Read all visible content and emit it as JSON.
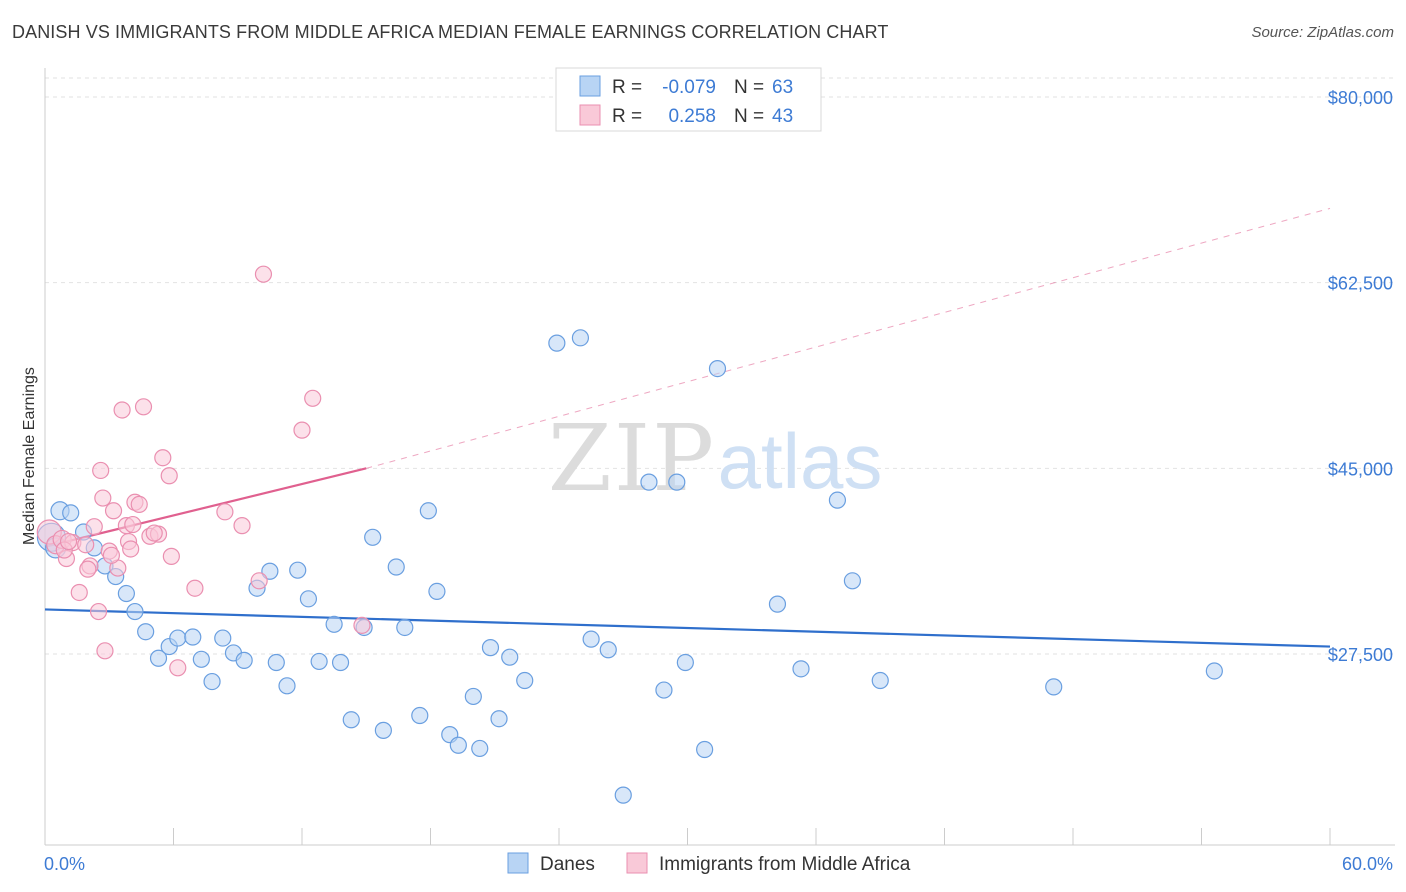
{
  "title": "DANISH VS IMMIGRANTS FROM MIDDLE AFRICA MEDIAN FEMALE EARNINGS CORRELATION CHART",
  "source": "Source: ZipAtlas.com",
  "watermark": {
    "zip": "ZIP",
    "atlas": "atlas"
  },
  "colors": {
    "blue_fill": "#b8d4f4",
    "blue_stroke": "#6a9fe0",
    "blue_line": "#2f6fcc",
    "pink_fill": "#f9c9d8",
    "pink_stroke": "#ea8fb0",
    "pink_line": "#e0608f",
    "axis_text": "#3d7bd4",
    "grid": "#e2e2e2"
  },
  "legend": {
    "rows": [
      {
        "r_label": "R =",
        "r_value": "-0.079",
        "n_label": "N =",
        "n_value": "63",
        "color": "#b8d4f4",
        "stroke": "#6a9fe0"
      },
      {
        "r_label": "R =",
        "r_value": "0.258",
        "n_label": "N =",
        "n_value": "43",
        "color": "#f9c9d8",
        "stroke": "#ea8fb0"
      }
    ]
  },
  "bottom_legend": [
    {
      "label": "Danes",
      "color": "#b8d4f4",
      "stroke": "#6a9fe0"
    },
    {
      "label": "Immigrants from Middle Africa",
      "color": "#f9c9d8",
      "stroke": "#ea8fb0"
    }
  ],
  "chart_data": {
    "type": "scatter",
    "title": "DANISH VS IMMIGRANTS FROM MIDDLE AFRICA MEDIAN FEMALE EARNINGS CORRELATION CHART",
    "xlabel": "",
    "ylabel": "Median Female Earnings",
    "xlim": [
      0,
      60
    ],
    "ylim": [
      13000,
      84000
    ],
    "x_tick_labels": {
      "0": "0.0%",
      "60": "60.0%"
    },
    "y_ticks": [
      80000,
      62500,
      45000,
      27500
    ],
    "y_tick_labels": [
      "$80,000",
      "$62,500",
      "$45,000",
      "$27,500"
    ],
    "grid": true,
    "legend_position": "top-center",
    "series": [
      {
        "name": "Danes",
        "color": "#b8d4f4",
        "trend": {
          "x0": 0,
          "y0": 31700,
          "x1": 60,
          "y1": 28200,
          "style": "solid"
        },
        "points": [
          [
            0.3,
            38500,
            14
          ],
          [
            0.5,
            37500,
            10
          ],
          [
            0.7,
            41000,
            9
          ],
          [
            1.2,
            40800,
            8
          ],
          [
            1.8,
            39000,
            8
          ],
          [
            2.3,
            37500,
            8
          ],
          [
            2.8,
            35800,
            8
          ],
          [
            3.3,
            34800,
            8
          ],
          [
            3.8,
            33200,
            8
          ],
          [
            4.2,
            31500,
            8
          ],
          [
            4.7,
            29600,
            8
          ],
          [
            5.3,
            27100,
            8
          ],
          [
            5.8,
            28200,
            8
          ],
          [
            6.2,
            29000,
            8
          ],
          [
            6.9,
            29100,
            8
          ],
          [
            7.3,
            27000,
            8
          ],
          [
            7.8,
            24900,
            8
          ],
          [
            8.3,
            29000,
            8
          ],
          [
            8.8,
            27600,
            8
          ],
          [
            9.3,
            26900,
            8
          ],
          [
            9.9,
            33700,
            8
          ],
          [
            10.5,
            35300,
            8
          ],
          [
            10.8,
            26700,
            8
          ],
          [
            11.3,
            24500,
            8
          ],
          [
            11.8,
            35400,
            8
          ],
          [
            12.3,
            32700,
            8
          ],
          [
            12.8,
            26800,
            8
          ],
          [
            13.5,
            30300,
            8
          ],
          [
            13.8,
            26700,
            8
          ],
          [
            14.3,
            21300,
            8
          ],
          [
            14.9,
            30000,
            8
          ],
          [
            15.3,
            38500,
            8
          ],
          [
            15.8,
            20300,
            8
          ],
          [
            16.4,
            35700,
            8
          ],
          [
            16.8,
            30000,
            8
          ],
          [
            17.5,
            21700,
            8
          ],
          [
            17.9,
            41000,
            8
          ],
          [
            18.3,
            33400,
            8
          ],
          [
            18.9,
            19900,
            8
          ],
          [
            19.3,
            18900,
            8
          ],
          [
            20.0,
            23500,
            8
          ],
          [
            20.3,
            18600,
            8
          ],
          [
            20.8,
            28100,
            8
          ],
          [
            21.2,
            21400,
            8
          ],
          [
            21.7,
            27200,
            8
          ],
          [
            22.4,
            25000,
            8
          ],
          [
            23.9,
            56800,
            8
          ],
          [
            25.0,
            57300,
            8
          ],
          [
            25.5,
            28900,
            8
          ],
          [
            26.3,
            27900,
            8
          ],
          [
            27.0,
            14200,
            8
          ],
          [
            28.2,
            43700,
            8
          ],
          [
            28.9,
            24100,
            8
          ],
          [
            29.5,
            43700,
            8
          ],
          [
            29.9,
            26700,
            8
          ],
          [
            30.8,
            18500,
            8
          ],
          [
            31.4,
            54400,
            8
          ],
          [
            34.2,
            32200,
            8
          ],
          [
            35.3,
            26100,
            8
          ],
          [
            37.0,
            42000,
            8
          ],
          [
            37.7,
            34400,
            8
          ],
          [
            39.0,
            25000,
            8
          ],
          [
            47.1,
            24400,
            8
          ],
          [
            54.6,
            25900,
            8
          ]
        ]
      },
      {
        "name": "Immigrants from Middle Africa",
        "color": "#f9c9d8",
        "trend": {
          "x0": 0,
          "y0": 37600,
          "x1": 15,
          "y1": 45000,
          "style": "solid",
          "extend_to": [
            60,
            69500
          ],
          "extend_style": "dashed"
        },
        "points": [
          [
            0.2,
            39000,
            12
          ],
          [
            0.5,
            37800,
            9
          ],
          [
            0.8,
            38300,
            9
          ],
          [
            1.0,
            36500,
            8
          ],
          [
            1.3,
            38000,
            8
          ],
          [
            1.6,
            33300,
            8
          ],
          [
            1.9,
            37800,
            8
          ],
          [
            2.1,
            35800,
            8
          ],
          [
            2.3,
            39500,
            8
          ],
          [
            2.5,
            31500,
            8
          ],
          [
            2.6,
            44800,
            8
          ],
          [
            2.7,
            42200,
            8
          ],
          [
            2.8,
            27800,
            8
          ],
          [
            3.0,
            37200,
            8
          ],
          [
            3.2,
            41000,
            8
          ],
          [
            3.4,
            35600,
            8
          ],
          [
            3.6,
            50500,
            8
          ],
          [
            3.8,
            39600,
            8
          ],
          [
            3.9,
            38100,
            8
          ],
          [
            4.0,
            37400,
            8
          ],
          [
            4.2,
            41800,
            8
          ],
          [
            4.4,
            41600,
            8
          ],
          [
            4.6,
            50800,
            8
          ],
          [
            4.9,
            38600,
            8
          ],
          [
            5.3,
            38800,
            8
          ],
          [
            5.5,
            46000,
            8
          ],
          [
            5.8,
            44300,
            8
          ],
          [
            5.9,
            36700,
            8
          ],
          [
            6.2,
            26200,
            8
          ],
          [
            7.0,
            33700,
            8
          ],
          [
            8.4,
            40900,
            8
          ],
          [
            9.2,
            39600,
            8
          ],
          [
            10.0,
            34400,
            8
          ],
          [
            10.2,
            63300,
            8
          ],
          [
            12.0,
            48600,
            8
          ],
          [
            12.5,
            51600,
            8
          ],
          [
            14.8,
            30200,
            8
          ],
          [
            0.9,
            37300,
            8
          ],
          [
            1.1,
            38100,
            8
          ],
          [
            2.0,
            35500,
            8
          ],
          [
            3.1,
            36800,
            8
          ],
          [
            4.1,
            39700,
            8
          ],
          [
            5.1,
            38900,
            8
          ]
        ]
      }
    ]
  }
}
